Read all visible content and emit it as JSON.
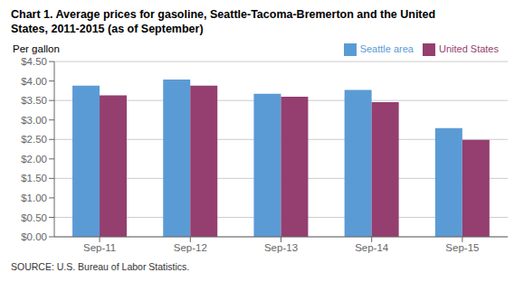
{
  "chart_data": {
    "type": "bar",
    "title": "Chart 1. Average prices for gasoline, Seattle-Tacoma-Bremerton and the United\nStates, 2011-2015  (as of September)",
    "y_label": "Per gallon",
    "annotations": [
      "SOURCE: U.S. Bureau of Labor Statistics."
    ],
    "categories": [
      "Sep-11",
      "Sep-12",
      "Sep-13",
      "Sep-14",
      "Sep-15"
    ],
    "series": [
      {
        "name": "Seattle area",
        "color": "#5B9BD5",
        "values": [
          3.88,
          4.04,
          3.67,
          3.77,
          2.79
        ]
      },
      {
        "name": "United States",
        "color": "#943F6F",
        "values": [
          3.63,
          3.88,
          3.6,
          3.46,
          2.49
        ]
      }
    ],
    "ylim": [
      0,
      4.5
    ],
    "yticks": [
      {
        "value": 0.0,
        "label": "$0.00"
      },
      {
        "value": 0.5,
        "label": "$0.50"
      },
      {
        "value": 1.0,
        "label": "$1.00"
      },
      {
        "value": 1.5,
        "label": "$1.50"
      },
      {
        "value": 2.0,
        "label": "$2.00"
      },
      {
        "value": 2.5,
        "label": "$2.50"
      },
      {
        "value": 3.0,
        "label": "$3.00"
      },
      {
        "value": 3.5,
        "label": "$3.50"
      },
      {
        "value": 4.0,
        "label": "$4.00"
      },
      {
        "value": 4.5,
        "label": "$4.50"
      }
    ],
    "grid": true,
    "legend": "upper right"
  }
}
